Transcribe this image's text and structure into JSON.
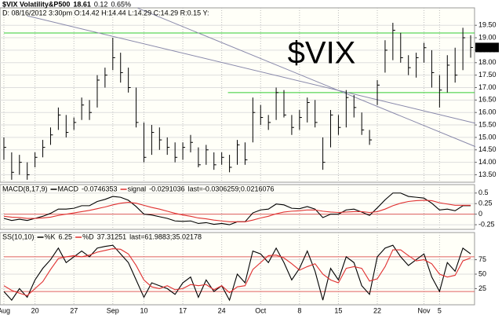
{
  "chart_data": [
    {
      "type": "ohlc",
      "title": "$VIX Volatility&P500",
      "header": [
        "18.61",
        "0.12",
        "0.65%"
      ],
      "subtitle": "D: 08/16/2012 3:30pm O:14.42 H:14.44 L:14.29 C:14.29 R:0.15 Y:",
      "watermark": "$VIX",
      "color": "#000000",
      "high": [
        15.0,
        14.4,
        14.3,
        14.0,
        14.4,
        14.9,
        15.4,
        16.2,
        15.9,
        15.8,
        16.6,
        16.5,
        17.5,
        17.8,
        19.0,
        18.4,
        17.8,
        17.0,
        15.6,
        15.5,
        15.4,
        15.0,
        14.8,
        14.8,
        15.1,
        14.6,
        14.7,
        14.4,
        14.4,
        14.3,
        14.9,
        14.8,
        16.6,
        16.3,
        15.9,
        17.0,
        16.9,
        15.9,
        16.1,
        16.6,
        16.5,
        15.0,
        16.1,
        15.9,
        16.9,
        16.7,
        16.0,
        15.3,
        17.3,
        18.9,
        19.6,
        19.2,
        18.3,
        18.4,
        18.8,
        18.5,
        17.5,
        18.3,
        18.6,
        19.4,
        19.1
      ],
      "low": [
        14.1,
        13.3,
        13.5,
        13.3,
        13.8,
        14.2,
        14.7,
        15.3,
        15.0,
        15.3,
        15.7,
        15.7,
        16.2,
        17.0,
        17.7,
        17.2,
        16.8,
        15.4,
        14.0,
        14.3,
        14.5,
        14.3,
        14.0,
        14.1,
        14.4,
        13.8,
        13.9,
        13.7,
        13.9,
        13.6,
        13.9,
        13.9,
        14.8,
        15.5,
        15.3,
        15.7,
        15.8,
        15.1,
        15.3,
        15.6,
        15.4,
        13.7,
        14.6,
        15.1,
        15.4,
        15.8,
        15.1,
        14.7,
        16.3,
        17.6,
        18.1,
        18.0,
        17.5,
        17.4,
        18.0,
        17.0,
        16.2,
        16.8,
        17.2,
        17.7,
        18.2
      ],
      "close": [
        14.6,
        13.6,
        14.0,
        13.5,
        14.2,
        14.6,
        15.1,
        15.9,
        15.2,
        15.6,
        16.3,
        16.0,
        17.3,
        17.5,
        18.2,
        17.6,
        17.0,
        15.6,
        14.2,
        15.2,
        14.9,
        14.6,
        14.2,
        14.6,
        14.8,
        13.9,
        14.5,
        13.9,
        14.2,
        13.8,
        14.7,
        14.1,
        16.0,
        15.8,
        15.6,
        16.8,
        15.9,
        15.4,
        15.8,
        16.4,
        15.6,
        14.0,
        15.9,
        15.4,
        16.6,
        16.2,
        15.3,
        14.9,
        17.1,
        18.5,
        19.3,
        18.2,
        17.8,
        18.2,
        18.6,
        17.6,
        16.9,
        17.9,
        17.5,
        19.0,
        18.61
      ],
      "ylim": [
        13.2,
        20.2
      ],
      "yticks": [
        {
          "value": 13.5,
          "label": "13.50"
        },
        {
          "value": 14,
          "label": "14.00"
        },
        {
          "value": 14.5,
          "label": "14.50"
        },
        {
          "value": 15,
          "label": "15.00"
        },
        {
          "value": 15.5,
          "label": "15.50"
        },
        {
          "value": 16,
          "label": "16.00"
        },
        {
          "value": 16.5,
          "label": "16.50"
        },
        {
          "value": 17,
          "label": "17.00"
        },
        {
          "value": 17.5,
          "label": "17.50"
        },
        {
          "value": 18,
          "label": "18.00"
        },
        {
          "value": 18.5,
          "label": "18.50"
        },
        {
          "value": 19,
          "label": "19.00"
        },
        {
          "value": 19.5,
          "label": "19.50"
        }
      ],
      "levels": [
        {
          "from": 0,
          "value": 19.19,
          "color": "#33cc33"
        },
        {
          "from": 28.8,
          "value": 16.8,
          "color": "#33cc33"
        }
      ],
      "trendlines": [
        {
          "x": [
            3,
            60.6
          ],
          "y": [
            19.88,
            15.57
          ],
          "color": "#8888aa"
        },
        {
          "x": [
            17.2,
            60.6
          ],
          "y": [
            20.19,
            14.63
          ],
          "color": "#8888aa"
        }
      ],
      "grid": true
    },
    {
      "type": "line",
      "title": "MACD(8,17,9)",
      "header": [
        "-0.0746353",
        "-0.0291036"
      ],
      "last": "last=-0.0306259;0.0216076",
      "series": [
        {
          "name": "MACD",
          "color": "#000000",
          "values": [
            -0.1,
            -0.15,
            -0.12,
            -0.15,
            -0.1,
            -0.05,
            0.02,
            0.12,
            0.12,
            0.14,
            0.2,
            0.2,
            0.3,
            0.35,
            0.42,
            0.4,
            0.33,
            0.18,
            0.0,
            -0.02,
            -0.06,
            -0.1,
            -0.16,
            -0.17,
            -0.16,
            -0.22,
            -0.2,
            -0.24,
            -0.22,
            -0.25,
            -0.18,
            -0.18,
            0.03,
            0.1,
            0.12,
            0.24,
            0.22,
            0.14,
            0.13,
            0.18,
            0.12,
            -0.08,
            0.0,
            0.0,
            0.1,
            0.12,
            0.05,
            -0.03,
            0.15,
            0.34,
            0.5,
            0.5,
            0.42,
            0.4,
            0.38,
            0.26,
            0.1,
            0.12,
            0.08,
            0.2,
            0.2
          ]
        },
        {
          "name": "signal",
          "color": "#e03030",
          "values": [
            -0.05,
            -0.07,
            -0.08,
            -0.1,
            -0.1,
            -0.09,
            -0.07,
            -0.03,
            0.0,
            0.03,
            0.06,
            0.09,
            0.13,
            0.17,
            0.22,
            0.26,
            0.28,
            0.26,
            0.21,
            0.16,
            0.12,
            0.07,
            0.02,
            -0.02,
            -0.05,
            -0.09,
            -0.11,
            -0.14,
            -0.16,
            -0.18,
            -0.18,
            -0.18,
            -0.14,
            -0.09,
            -0.05,
            0.01,
            0.05,
            0.07,
            0.08,
            0.1,
            0.1,
            0.07,
            0.05,
            0.04,
            0.05,
            0.06,
            0.06,
            0.04,
            0.06,
            0.12,
            0.2,
            0.26,
            0.3,
            0.32,
            0.33,
            0.32,
            0.27,
            0.24,
            0.21,
            0.21,
            0.21
          ]
        }
      ],
      "levels": [
        {
          "from": 0,
          "value": 0,
          "color": "#e06060"
        }
      ],
      "ylim": [
        -0.36,
        0.7
      ],
      "yticks": [
        -0.25,
        0,
        0.25,
        0.5
      ],
      "grid": true
    },
    {
      "type": "line",
      "title": "SS(10,10)",
      "header": [
        "6.25",
        "37.31251"
      ],
      "last": "last=61.9883;35.02178",
      "series": [
        {
          "name": "%K",
          "color": "#000000",
          "values": [
            20,
            5,
            25,
            10,
            40,
            60,
            75,
            95,
            70,
            80,
            90,
            80,
            95,
            98,
            100,
            85,
            70,
            40,
            10,
            35,
            30,
            25,
            15,
            35,
            45,
            10,
            40,
            20,
            30,
            5,
            50,
            35,
            90,
            85,
            70,
            95,
            70,
            40,
            60,
            90,
            55,
            5,
            60,
            40,
            80,
            70,
            30,
            15,
            80,
            95,
            100,
            80,
            65,
            75,
            85,
            45,
            20,
            70,
            55,
            95,
            85
          ]
        },
        {
          "name": "%D",
          "color": "#e03030",
          "values": [
            30,
            22,
            17,
            13,
            25,
            37,
            58,
            77,
            80,
            82,
            80,
            83,
            88,
            91,
            94,
            93,
            85,
            65,
            40,
            28,
            25,
            30,
            23,
            25,
            32,
            30,
            32,
            23,
            30,
            18,
            28,
            30,
            58,
            70,
            82,
            83,
            78,
            68,
            57,
            63,
            68,
            50,
            40,
            35,
            60,
            63,
            60,
            38,
            42,
            63,
            92,
            92,
            82,
            73,
            75,
            68,
            50,
            45,
            48,
            73,
            78
          ]
        }
      ],
      "levels": [
        {
          "from": 0,
          "value": 80,
          "color": "#e06060"
        },
        {
          "from": 0,
          "value": 20,
          "color": "#e06060"
        }
      ],
      "ylim": [
        -3,
        122
      ],
      "yticks": [
        25,
        50,
        75
      ],
      "grid": true,
      "categories": [
        "Aug",
        null,
        null,
        null,
        "20",
        null,
        null,
        null,
        null,
        "27",
        null,
        null,
        null,
        null,
        "Sep",
        null,
        null,
        null,
        "10",
        null,
        null,
        null,
        null,
        "17",
        null,
        null,
        null,
        null,
        "24",
        null,
        null,
        null,
        null,
        "Oct",
        null,
        null,
        null,
        null,
        "8",
        null,
        null,
        null,
        null,
        "15",
        null,
        null,
        null,
        null,
        "22",
        null,
        null,
        null,
        null,
        null,
        "Nov",
        null,
        "5",
        null,
        null,
        null,
        null
      ]
    }
  ]
}
